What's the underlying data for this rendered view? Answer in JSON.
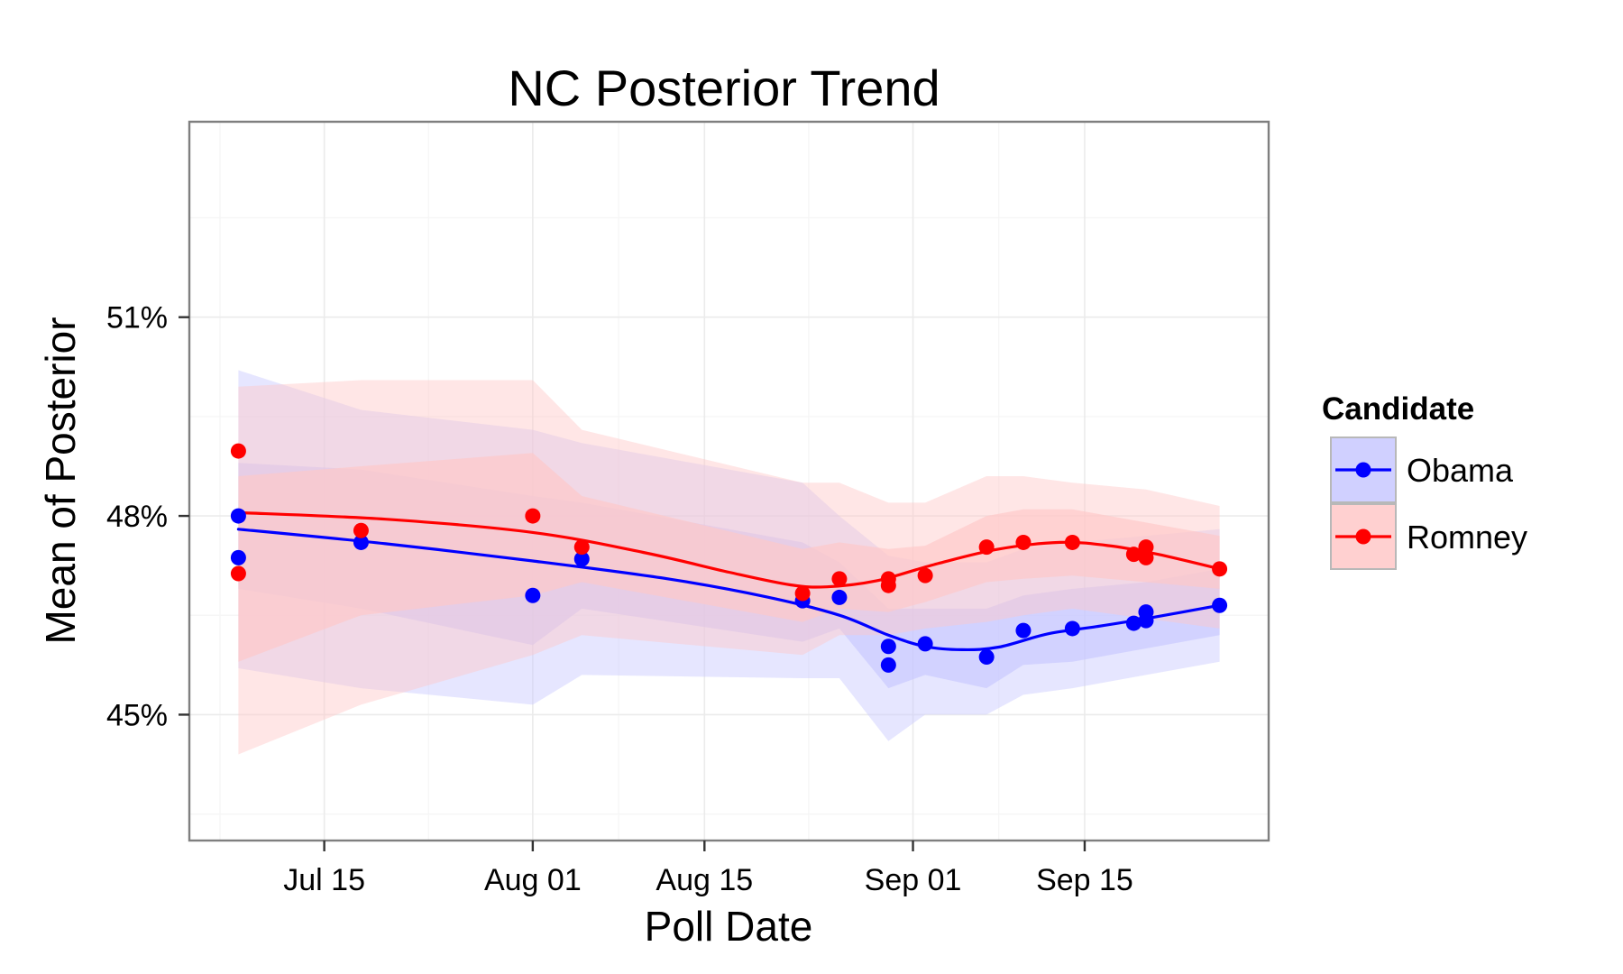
{
  "chart_data": {
    "type": "line",
    "title": "NC  Posterior Trend",
    "xlabel": "Poll Date",
    "ylabel": "Mean of Posterior",
    "x_ticks": [
      {
        "date": "2012-07-15",
        "label": "Jul 15"
      },
      {
        "date": "2012-08-01",
        "label": "Aug 01"
      },
      {
        "date": "2012-08-15",
        "label": "Aug 15"
      },
      {
        "date": "2012-09-01",
        "label": "Sep 01"
      },
      {
        "date": "2012-09-15",
        "label": "Sep 15"
      }
    ],
    "xlim": [
      "2012-07-04",
      "2012-09-30"
    ],
    "y_ticks": [
      {
        "value": 45,
        "label": "45%"
      },
      {
        "value": 48,
        "label": "48%"
      },
      {
        "value": 51,
        "label": "51%"
      }
    ],
    "ylim": [
      43.1,
      53.95
    ],
    "grid": true,
    "legend": {
      "title": "Candidate",
      "position": "right"
    },
    "series": [
      {
        "name": "Obama",
        "color": "#0000ff",
        "fill": "#c8c8ff",
        "points": [
          {
            "x": "2012-07-08",
            "y": 48.0
          },
          {
            "x": "2012-07-08",
            "y": 47.37
          },
          {
            "x": "2012-07-18",
            "y": 47.6
          },
          {
            "x": "2012-08-01",
            "y": 46.8
          },
          {
            "x": "2012-08-05",
            "y": 47.35
          },
          {
            "x": "2012-08-23",
            "y": 46.72
          },
          {
            "x": "2012-08-26",
            "y": 46.77
          },
          {
            "x": "2012-08-30",
            "y": 46.03
          },
          {
            "x": "2012-08-30",
            "y": 45.75
          },
          {
            "x": "2012-09-02",
            "y": 46.07
          },
          {
            "x": "2012-09-07",
            "y": 45.87
          },
          {
            "x": "2012-09-10",
            "y": 46.27
          },
          {
            "x": "2012-09-14",
            "y": 46.3
          },
          {
            "x": "2012-09-19",
            "y": 46.38
          },
          {
            "x": "2012-09-20",
            "y": 46.55
          },
          {
            "x": "2012-09-20",
            "y": 46.42
          },
          {
            "x": "2012-09-26",
            "y": 46.65
          }
        ],
        "trend": [
          {
            "x": "2012-07-08",
            "y": 47.8
          },
          {
            "x": "2012-07-20",
            "y": 47.58
          },
          {
            "x": "2012-08-01",
            "y": 47.32
          },
          {
            "x": "2012-08-12",
            "y": 47.05
          },
          {
            "x": "2012-08-20",
            "y": 46.78
          },
          {
            "x": "2012-08-26",
            "y": 46.5
          },
          {
            "x": "2012-08-30",
            "y": 46.2
          },
          {
            "x": "2012-09-02",
            "y": 46.03
          },
          {
            "x": "2012-09-05",
            "y": 45.98
          },
          {
            "x": "2012-09-08",
            "y": 46.02
          },
          {
            "x": "2012-09-12",
            "y": 46.22
          },
          {
            "x": "2012-09-16",
            "y": 46.33
          },
          {
            "x": "2012-09-20",
            "y": 46.45
          },
          {
            "x": "2012-09-26",
            "y": 46.65
          }
        ],
        "band_outer": [
          {
            "x": "2012-07-08",
            "lo": 45.7,
            "hi": 50.2
          },
          {
            "x": "2012-07-18",
            "lo": 45.4,
            "hi": 49.6
          },
          {
            "x": "2012-08-01",
            "lo": 45.15,
            "hi": 49.3
          },
          {
            "x": "2012-08-05",
            "lo": 45.6,
            "hi": 49.1
          },
          {
            "x": "2012-08-23",
            "lo": 45.55,
            "hi": 48.5
          },
          {
            "x": "2012-08-26",
            "lo": 45.55,
            "hi": 48.0
          },
          {
            "x": "2012-08-30",
            "lo": 44.6,
            "hi": 47.4
          },
          {
            "x": "2012-09-02",
            "lo": 45.0,
            "hi": 47.3
          },
          {
            "x": "2012-09-07",
            "lo": 45.0,
            "hi": 47.3
          },
          {
            "x": "2012-09-10",
            "lo": 45.3,
            "hi": 47.5
          },
          {
            "x": "2012-09-14",
            "lo": 45.4,
            "hi": 47.6
          },
          {
            "x": "2012-09-20",
            "lo": 45.6,
            "hi": 47.7
          },
          {
            "x": "2012-09-26",
            "lo": 45.8,
            "hi": 47.8
          }
        ],
        "band_inner": [
          {
            "x": "2012-07-08",
            "lo": 46.9,
            "hi": 48.8
          },
          {
            "x": "2012-07-18",
            "lo": 46.6,
            "hi": 48.7
          },
          {
            "x": "2012-08-01",
            "lo": 46.05,
            "hi": 48.3
          },
          {
            "x": "2012-08-05",
            "lo": 46.6,
            "hi": 48.2
          },
          {
            "x": "2012-08-23",
            "lo": 46.1,
            "hi": 47.6
          },
          {
            "x": "2012-08-26",
            "lo": 46.3,
            "hi": 47.3
          },
          {
            "x": "2012-08-30",
            "lo": 45.4,
            "hi": 46.6
          },
          {
            "x": "2012-09-02",
            "lo": 45.6,
            "hi": 46.6
          },
          {
            "x": "2012-09-07",
            "lo": 45.4,
            "hi": 46.6
          },
          {
            "x": "2012-09-10",
            "lo": 45.75,
            "hi": 46.8
          },
          {
            "x": "2012-09-14",
            "lo": 45.8,
            "hi": 46.9
          },
          {
            "x": "2012-09-20",
            "lo": 46.0,
            "hi": 47.0
          },
          {
            "x": "2012-09-26",
            "lo": 46.2,
            "hi": 47.2
          }
        ]
      },
      {
        "name": "Romney",
        "color": "#ff0000",
        "fill": "#ffc8c8",
        "points": [
          {
            "x": "2012-07-08",
            "y": 48.98
          },
          {
            "x": "2012-07-08",
            "y": 47.13
          },
          {
            "x": "2012-07-18",
            "y": 47.78
          },
          {
            "x": "2012-08-01",
            "y": 48.0
          },
          {
            "x": "2012-08-05",
            "y": 47.53
          },
          {
            "x": "2012-08-23",
            "y": 46.83
          },
          {
            "x": "2012-08-26",
            "y": 47.05
          },
          {
            "x": "2012-08-30",
            "y": 47.05
          },
          {
            "x": "2012-08-30",
            "y": 46.95
          },
          {
            "x": "2012-09-02",
            "y": 47.1
          },
          {
            "x": "2012-09-07",
            "y": 47.53
          },
          {
            "x": "2012-09-10",
            "y": 47.6
          },
          {
            "x": "2012-09-14",
            "y": 47.6
          },
          {
            "x": "2012-09-19",
            "y": 47.42
          },
          {
            "x": "2012-09-20",
            "y": 47.53
          },
          {
            "x": "2012-09-20",
            "y": 47.37
          },
          {
            "x": "2012-09-26",
            "y": 47.2
          }
        ],
        "trend": [
          {
            "x": "2012-07-08",
            "y": 48.05
          },
          {
            "x": "2012-07-20",
            "y": 47.95
          },
          {
            "x": "2012-08-01",
            "y": 47.75
          },
          {
            "x": "2012-08-10",
            "y": 47.45
          },
          {
            "x": "2012-08-17",
            "y": 47.15
          },
          {
            "x": "2012-08-22",
            "y": 46.96
          },
          {
            "x": "2012-08-25",
            "y": 46.93
          },
          {
            "x": "2012-08-29",
            "y": 47.02
          },
          {
            "x": "2012-09-03",
            "y": 47.28
          },
          {
            "x": "2012-09-08",
            "y": 47.5
          },
          {
            "x": "2012-09-13",
            "y": 47.6
          },
          {
            "x": "2012-09-17",
            "y": 47.55
          },
          {
            "x": "2012-09-21",
            "y": 47.42
          },
          {
            "x": "2012-09-26",
            "y": 47.2
          }
        ],
        "band_outer": [
          {
            "x": "2012-07-08",
            "lo": 44.4,
            "hi": 49.95
          },
          {
            "x": "2012-07-18",
            "lo": 45.15,
            "hi": 50.05
          },
          {
            "x": "2012-08-01",
            "lo": 45.9,
            "hi": 50.05
          },
          {
            "x": "2012-08-05",
            "lo": 46.2,
            "hi": 49.3
          },
          {
            "x": "2012-08-23",
            "lo": 45.9,
            "hi": 48.5
          },
          {
            "x": "2012-08-26",
            "lo": 46.2,
            "hi": 48.5
          },
          {
            "x": "2012-08-30",
            "lo": 46.2,
            "hi": 48.2
          },
          {
            "x": "2012-09-02",
            "lo": 46.3,
            "hi": 48.2
          },
          {
            "x": "2012-09-07",
            "lo": 46.4,
            "hi": 48.6
          },
          {
            "x": "2012-09-10",
            "lo": 46.5,
            "hi": 48.6
          },
          {
            "x": "2012-09-14",
            "lo": 46.6,
            "hi": 48.5
          },
          {
            "x": "2012-09-20",
            "lo": 46.45,
            "hi": 48.4
          },
          {
            "x": "2012-09-26",
            "lo": 46.3,
            "hi": 48.15
          }
        ],
        "band_inner": [
          {
            "x": "2012-07-08",
            "lo": 45.8,
            "hi": 48.6
          },
          {
            "x": "2012-07-18",
            "lo": 46.5,
            "hi": 48.75
          },
          {
            "x": "2012-08-01",
            "lo": 46.8,
            "hi": 48.95
          },
          {
            "x": "2012-08-05",
            "lo": 47.0,
            "hi": 48.3
          },
          {
            "x": "2012-08-23",
            "lo": 46.4,
            "hi": 47.5
          },
          {
            "x": "2012-08-26",
            "lo": 46.6,
            "hi": 47.6
          },
          {
            "x": "2012-08-30",
            "lo": 46.55,
            "hi": 47.5
          },
          {
            "x": "2012-09-02",
            "lo": 46.7,
            "hi": 47.55
          },
          {
            "x": "2012-09-07",
            "lo": 47.0,
            "hi": 48.0
          },
          {
            "x": "2012-09-10",
            "lo": 47.05,
            "hi": 48.1
          },
          {
            "x": "2012-09-14",
            "lo": 47.1,
            "hi": 48.1
          },
          {
            "x": "2012-09-20",
            "lo": 47.0,
            "hi": 47.9
          },
          {
            "x": "2012-09-26",
            "lo": 46.9,
            "hi": 47.7
          }
        ]
      }
    ]
  }
}
